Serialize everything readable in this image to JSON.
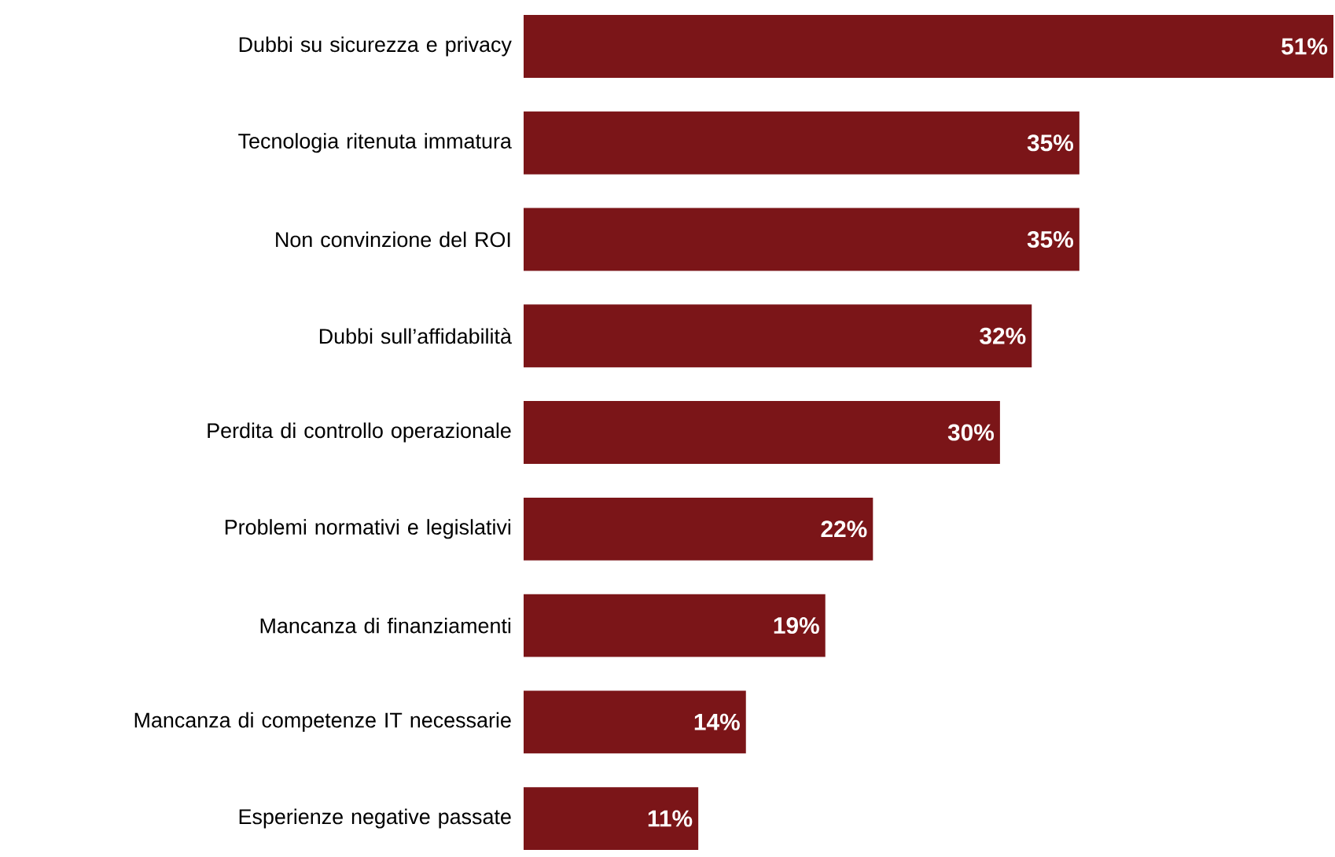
{
  "chart_data": {
    "type": "bar",
    "orientation": "horizontal",
    "categories": [
      "Dubbi su sicurezza e privacy",
      "Tecnologia ritenuta immatura",
      "Non convinzione del ROI",
      "Dubbi sull’affidabilità",
      "Perdita di controllo operazionale",
      "Problemi normativi e legislativi",
      "Mancanza di finanziamenti",
      "Mancanza di competenze IT necessarie",
      "Esperienze negative passate"
    ],
    "values": [
      51,
      35,
      35,
      32,
      30,
      22,
      19,
      14,
      11
    ],
    "value_labels": [
      "51%",
      "35%",
      "35%",
      "32%",
      "30%",
      "22%",
      "19%",
      "14%",
      "11%"
    ],
    "color": "#7b1518"
  }
}
